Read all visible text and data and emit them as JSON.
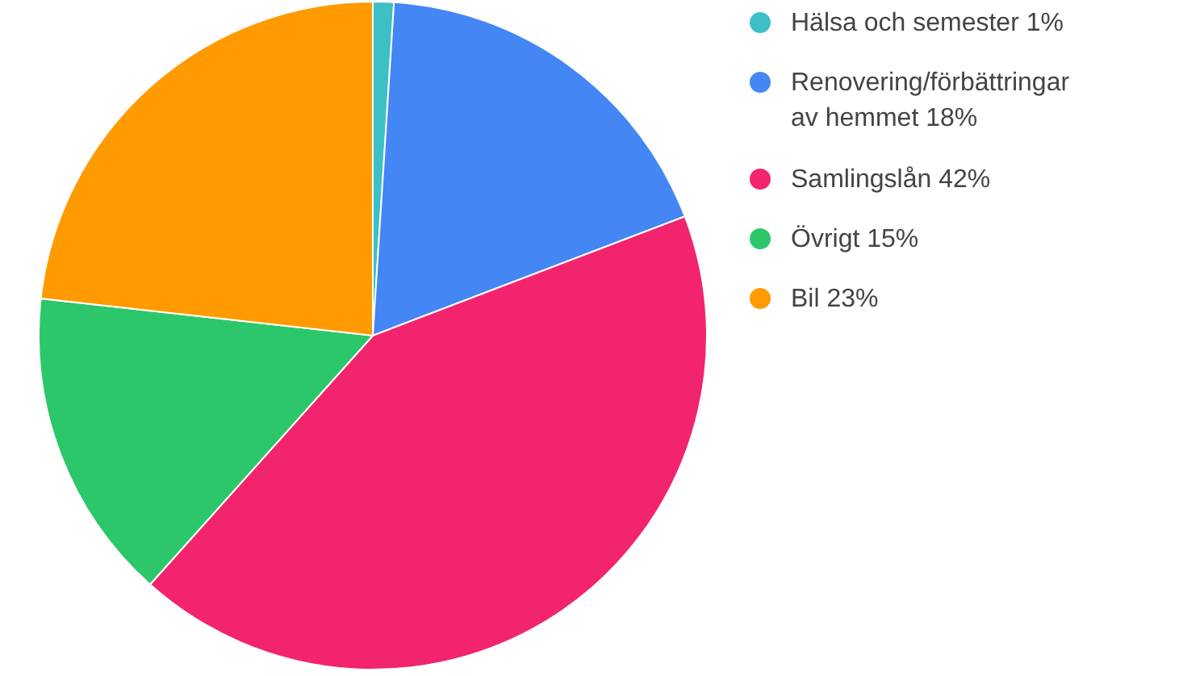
{
  "chart_data": {
    "type": "pie",
    "categories": [
      "Hälsa och semester",
      "Renovering/förbättringar av hemmet",
      "Samlingslån",
      "Övrigt",
      "Bil"
    ],
    "values": [
      1,
      18,
      42,
      15,
      23
    ],
    "value_labels": [
      "1%",
      "18%",
      "42%",
      "15%",
      "23%"
    ],
    "colors": [
      "#3dbfc6",
      "#4386f4",
      "#f2246e",
      "#2cc76a",
      "#ff9a00"
    ],
    "legend": "top right"
  }
}
